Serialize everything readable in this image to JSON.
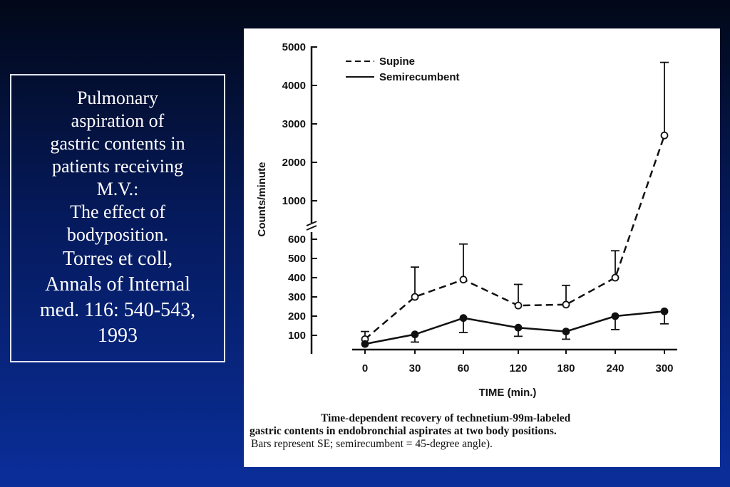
{
  "info": {
    "title_lines": [
      "Pulmonary",
      "aspiration of",
      "gastric contents in",
      "patients receiving",
      "M.V.:",
      "The effect of",
      "bodyposition."
    ],
    "citation_lines": [
      "Torres et coll,",
      "Annals of Internal",
      "med. 116: 540-543,",
      "1993"
    ]
  },
  "chart_data": {
    "type": "line",
    "xlabel": "TIME (min.)",
    "ylabel": "Counts/minute",
    "categories": [
      "0",
      "30",
      "60",
      "120",
      "180",
      "240",
      "300"
    ],
    "x": [
      0,
      30,
      60,
      120,
      180,
      240,
      300
    ],
    "y_lower_ticks": [
      100,
      200,
      300,
      400,
      500,
      600
    ],
    "y_upper_ticks": [
      1000,
      2000,
      3000,
      4000,
      5000
    ],
    "axis_break": true,
    "legend_placement": "top-left",
    "series": [
      {
        "name": "Supine",
        "style": "dashed",
        "marker": "open-circle",
        "values": [
          80,
          300,
          390,
          255,
          260,
          400,
          2700
        ],
        "error_upper": [
          120,
          455,
          575,
          365,
          360,
          540,
          4600
        ]
      },
      {
        "name": "Semirecumbent",
        "style": "solid",
        "marker": "filled-circle",
        "values": [
          55,
          105,
          190,
          140,
          120,
          200,
          225
        ],
        "error_upper": [
          null,
          null,
          null,
          null,
          null,
          null,
          null
        ],
        "error_lower": [
          null,
          65,
          115,
          95,
          80,
          130,
          160
        ]
      }
    ],
    "caption_lines": [
      "Time-dependent  recovery  of  technetium-99m-labeled",
      "gastric contents in endobronchial aspirates at two body positions.",
      "Bars represent SE; semirecumbent = 45-degree angle)."
    ]
  }
}
